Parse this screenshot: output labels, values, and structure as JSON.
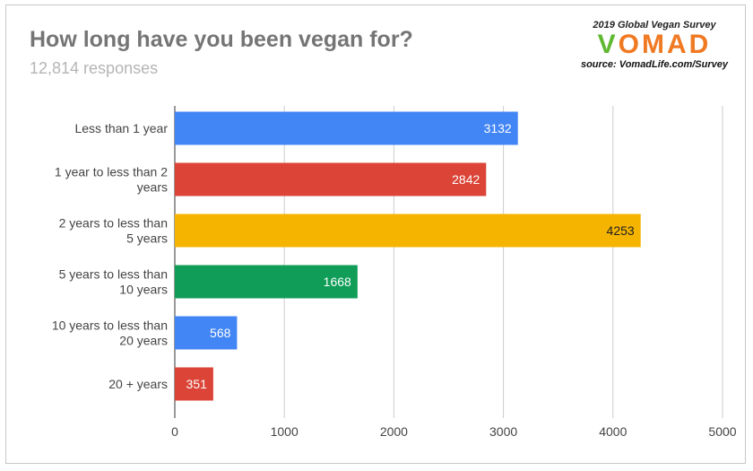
{
  "title": "How long have you been vegan for?",
  "subtitle": "12,814 responses",
  "logo": {
    "heading": "2019 Global Vegan Survey",
    "brand": "VOMAD",
    "source": "source: VomadLife.com/Survey"
  },
  "chart_data": {
    "type": "bar",
    "orientation": "horizontal",
    "categories": [
      [
        "Less than 1 year"
      ],
      [
        "1 year to less than 2",
        "years"
      ],
      [
        "2 years to less than",
        "5 years"
      ],
      [
        "5 years to less than",
        "10 years"
      ],
      [
        "10 years to less than",
        "20 years"
      ],
      [
        "20 + years"
      ]
    ],
    "values": [
      3132,
      2842,
      4253,
      1668,
      568,
      351
    ],
    "colors": [
      "#4285f4",
      "#db4437",
      "#f4b400",
      "#0f9d58",
      "#4285f4",
      "#db4437"
    ],
    "label_colors": [
      "#ffffff",
      "#ffffff",
      "#222222",
      "#ffffff",
      "#ffffff",
      "#ffffff"
    ],
    "xlim": [
      0,
      5000
    ],
    "xticks": [
      0,
      1000,
      2000,
      3000,
      4000,
      5000
    ],
    "grid": true,
    "data_labels": true
  }
}
